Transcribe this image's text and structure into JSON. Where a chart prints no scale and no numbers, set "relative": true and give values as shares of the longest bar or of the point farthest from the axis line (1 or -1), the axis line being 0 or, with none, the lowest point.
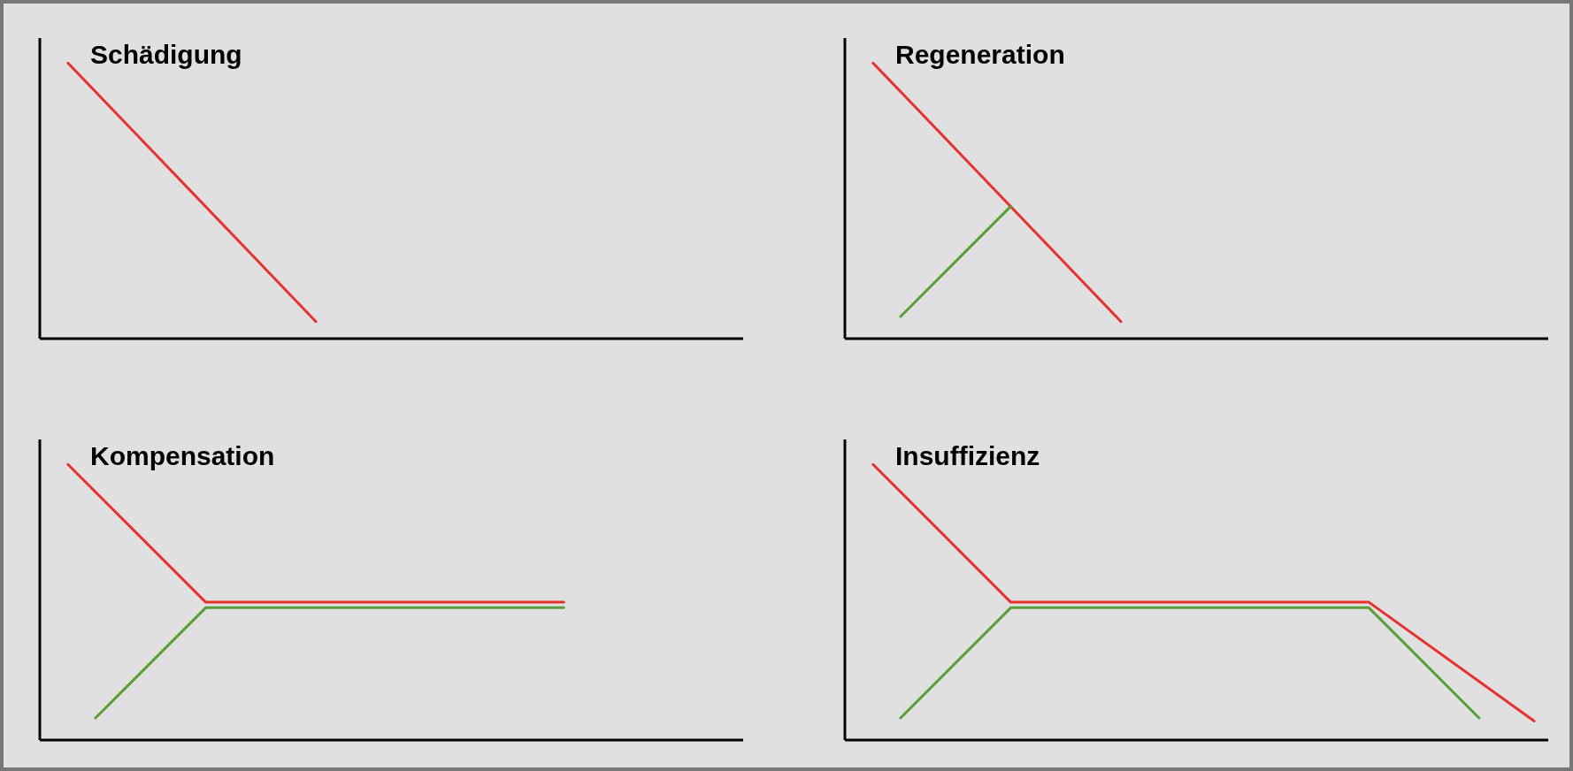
{
  "chart_data": [
    {
      "type": "line",
      "title": "Schädigung",
      "relative": true,
      "categories": [
        null,
        null,
        null,
        null,
        null,
        null,
        null,
        null,
        null,
        null,
        null,
        null,
        null,
        null,
        null,
        null,
        null,
        null,
        null,
        null,
        null,
        null,
        null,
        null,
        null
      ],
      "series": [
        {
          "color": "#e8312f",
          "values": [
            1,
            null,
            null,
            null,
            null,
            null,
            null,
            null,
            null,
            0.062,
            null,
            null,
            null,
            null,
            null,
            null,
            null,
            null,
            null,
            null,
            null,
            null,
            null,
            null,
            null
          ]
        }
      ]
    },
    {
      "type": "line",
      "title": "Regeneration",
      "relative": true,
      "categories": [
        null,
        null,
        null,
        null,
        null,
        null,
        null,
        null,
        null,
        null,
        null,
        null,
        null,
        null,
        null,
        null,
        null,
        null,
        null,
        null,
        null,
        null,
        null,
        null,
        null
      ],
      "series": [
        {
          "color": "#e8312f",
          "values": [
            1,
            null,
            null,
            null,
            null,
            null,
            null,
            null,
            null,
            0.062,
            null,
            null,
            null,
            null,
            null,
            null,
            null,
            null,
            null,
            null,
            null,
            null,
            null,
            null,
            null
          ]
        },
        {
          "color": "#5a9e3a",
          "values": [
            null,
            0.08,
            null,
            null,
            null,
            0.48,
            null,
            null,
            null,
            null,
            null,
            null,
            null,
            null,
            null,
            null,
            null,
            null,
            null,
            null,
            null,
            null,
            null,
            null,
            null
          ]
        }
      ]
    },
    {
      "type": "line",
      "title": "Kompensation",
      "relative": true,
      "categories": [
        null,
        null,
        null,
        null,
        null,
        null,
        null,
        null,
        null,
        null,
        null,
        null,
        null,
        null,
        null,
        null,
        null,
        null,
        null,
        null,
        null,
        null,
        null,
        null,
        null
      ],
      "series": [
        {
          "color": "#e8312f",
          "values": [
            1,
            null,
            null,
            null,
            null,
            0.5,
            null,
            null,
            null,
            null,
            null,
            null,
            null,
            null,
            null,
            null,
            null,
            null,
            0.5,
            null,
            null,
            null,
            null,
            null,
            null
          ]
        },
        {
          "color": "#5a9e3a",
          "values": [
            null,
            0.08,
            null,
            null,
            null,
            0.48,
            null,
            null,
            null,
            null,
            null,
            null,
            null,
            null,
            null,
            null,
            null,
            null,
            0.48,
            null,
            null,
            null,
            null,
            null,
            null
          ]
        }
      ]
    },
    {
      "type": "line",
      "title": "Insuffizienz",
      "relative": true,
      "categories": [
        null,
        null,
        null,
        null,
        null,
        null,
        null,
        null,
        null,
        null,
        null,
        null,
        null,
        null,
        null,
        null,
        null,
        null,
        null,
        null,
        null,
        null,
        null,
        null,
        null
      ],
      "series": [
        {
          "color": "#e8312f",
          "values": [
            1,
            null,
            null,
            null,
            null,
            0.5,
            null,
            null,
            null,
            null,
            null,
            null,
            null,
            null,
            null,
            null,
            null,
            null,
            0.5,
            null,
            null,
            null,
            null,
            null,
            0.069
          ]
        },
        {
          "color": "#5a9e3a",
          "values": [
            null,
            0.08,
            null,
            null,
            null,
            0.48,
            null,
            null,
            null,
            null,
            null,
            null,
            null,
            null,
            null,
            null,
            null,
            null,
            0.48,
            null,
            null,
            null,
            0.08,
            null,
            null
          ]
        }
      ]
    }
  ]
}
